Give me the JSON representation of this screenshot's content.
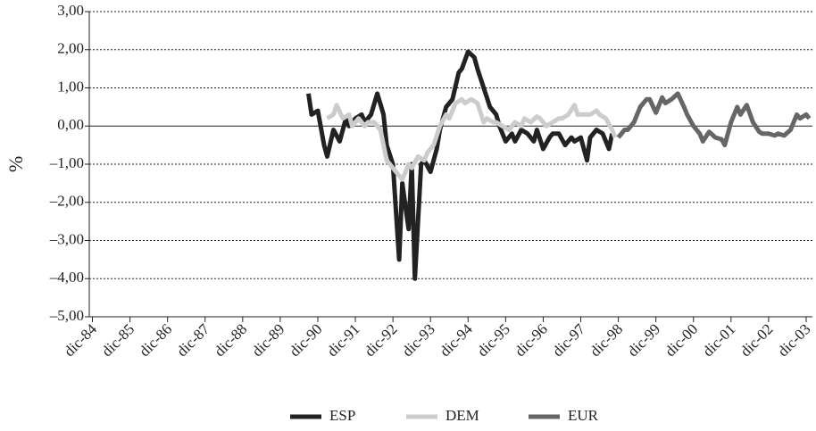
{
  "chart_data": {
    "type": "line",
    "y_label": "%",
    "xlim": [
      -1,
      230
    ],
    "xticks": [
      {
        "value": 0,
        "label": "dic-84"
      },
      {
        "value": 12,
        "label": "dic-85"
      },
      {
        "value": 24,
        "label": "dic-86"
      },
      {
        "value": 36,
        "label": "dic-87"
      },
      {
        "value": 48,
        "label": "dic-88"
      },
      {
        "value": 60,
        "label": "dic-89"
      },
      {
        "value": 72,
        "label": "dic-90"
      },
      {
        "value": 84,
        "label": "dic-91"
      },
      {
        "value": 96,
        "label": "dic-92"
      },
      {
        "value": 108,
        "label": "dic-93"
      },
      {
        "value": 120,
        "label": "dic-94"
      },
      {
        "value": 132,
        "label": "dic-95"
      },
      {
        "value": 144,
        "label": "dic-96"
      },
      {
        "value": 156,
        "label": "dic-97"
      },
      {
        "value": 168,
        "label": "dic-98"
      },
      {
        "value": 180,
        "label": "dic-99"
      },
      {
        "value": 192,
        "label": "dic-00"
      },
      {
        "value": 204,
        "label": "dic-01"
      },
      {
        "value": 216,
        "label": "dic-02"
      },
      {
        "value": 228,
        "label": "dic-03"
      }
    ],
    "ylim": [
      -5,
      3
    ],
    "yticks": [
      {
        "value": 3,
        "label": "3,00"
      },
      {
        "value": 2,
        "label": "2,00"
      },
      {
        "value": 1,
        "label": "1,00"
      },
      {
        "value": 0,
        "label": "0,00"
      },
      {
        "value": -1,
        "label": "–1,00"
      },
      {
        "value": -2,
        "label": "–2,00"
      },
      {
        "value": -3,
        "label": "–3,00"
      },
      {
        "value": -4,
        "label": "–4,00"
      },
      {
        "value": -5,
        "label": "–5,00"
      }
    ],
    "grid": true,
    "legend": "bottom",
    "series": [
      {
        "name": "ESP",
        "color": "#222222",
        "x": [
          69,
          70,
          72,
          74,
          75,
          77,
          79,
          81,
          82,
          84,
          86,
          87,
          89,
          91,
          93,
          94,
          96,
          98,
          99,
          101,
          102,
          103,
          105,
          106,
          108,
          110,
          111,
          113,
          115,
          117,
          118,
          120,
          122,
          123,
          125,
          127,
          129,
          130,
          132,
          134,
          135,
          137,
          139,
          141,
          142,
          144,
          146,
          147,
          149,
          151,
          153,
          154,
          156,
          158,
          159,
          161,
          163,
          165,
          166
        ],
        "values": [
          0.85,
          0.3,
          0.4,
          -0.5,
          -0.8,
          -0.1,
          -0.4,
          0.2,
          0.0,
          0.2,
          0.3,
          0.1,
          0.3,
          0.85,
          0.3,
          -0.5,
          -1.0,
          -3.5,
          -1.5,
          -2.7,
          -1.0,
          -4.0,
          -1.0,
          -0.9,
          -1.2,
          -0.6,
          -0.1,
          0.5,
          0.7,
          1.4,
          1.5,
          1.95,
          1.8,
          1.5,
          1.0,
          0.5,
          0.3,
          0.0,
          -0.4,
          -0.2,
          -0.4,
          -0.1,
          -0.2,
          -0.4,
          -0.1,
          -0.6,
          -0.3,
          -0.2,
          -0.2,
          -0.5,
          -0.3,
          -0.4,
          -0.3,
          -0.9,
          -0.3,
          -0.1,
          -0.2,
          -0.6,
          -0.2
        ]
      },
      {
        "name": "DEM",
        "color": "#cccccc",
        "x": [
          75,
          77,
          78,
          80,
          82,
          83,
          85,
          87,
          88,
          90,
          92,
          94,
          95,
          97,
          99,
          101,
          102,
          104,
          106,
          107,
          109,
          111,
          113,
          114,
          116,
          118,
          119,
          121,
          123,
          125,
          126,
          128,
          129,
          131,
          133,
          135,
          137,
          138,
          140,
          142,
          143,
          145,
          147,
          149,
          150,
          152,
          154,
          155,
          157,
          159,
          161,
          162,
          164,
          166,
          167
        ],
        "values": [
          0.2,
          0.3,
          0.55,
          0.2,
          0.3,
          0.0,
          0.2,
          0.0,
          0.1,
          0.1,
          -0.1,
          -0.9,
          -1.0,
          -1.2,
          -1.4,
          -1.0,
          -1.1,
          -0.8,
          -0.9,
          -0.7,
          -0.5,
          0.0,
          0.3,
          0.2,
          0.6,
          0.7,
          0.6,
          0.7,
          0.6,
          0.1,
          0.2,
          0.1,
          0.1,
          0.0,
          -0.1,
          0.1,
          0.0,
          0.2,
          0.1,
          0.25,
          0.2,
          0.0,
          0.1,
          0.2,
          0.2,
          0.3,
          0.55,
          0.3,
          0.3,
          0.3,
          0.4,
          0.3,
          0.2,
          -0.1,
          -0.3
        ]
      },
      {
        "name": "EUR",
        "color": "#666666",
        "x": [
          168,
          170,
          171,
          173,
          175,
          177,
          178,
          180,
          182,
          183,
          185,
          187,
          189,
          190,
          192,
          194,
          195,
          197,
          199,
          201,
          202,
          204,
          206,
          207,
          209,
          211,
          213,
          214,
          216,
          218,
          219,
          221,
          223,
          225,
          226,
          228,
          229
        ],
        "values": [
          -0.3,
          -0.1,
          -0.1,
          0.1,
          0.5,
          0.7,
          0.7,
          0.35,
          0.75,
          0.6,
          0.7,
          0.85,
          0.5,
          0.3,
          0.0,
          -0.2,
          -0.4,
          -0.15,
          -0.3,
          -0.35,
          -0.5,
          0.1,
          0.5,
          0.3,
          0.55,
          0.1,
          -0.15,
          -0.2,
          -0.2,
          -0.25,
          -0.2,
          -0.25,
          -0.1,
          0.3,
          0.2,
          0.3,
          0.2
        ]
      }
    ]
  }
}
